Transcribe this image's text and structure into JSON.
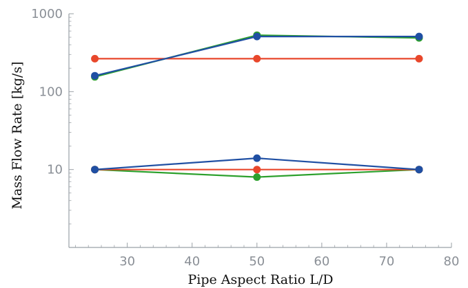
{
  "chart_data": {
    "type": "line",
    "title": "",
    "xlabel": "Pipe Aspect Ratio L/D",
    "ylabel": "Mass Flow Rate [kg/s]",
    "xlim": [
      21,
      80
    ],
    "ylim": [
      1,
      1000
    ],
    "y_scale": "log",
    "grid": false,
    "x_ticks": [
      30,
      40,
      50,
      60,
      70,
      80
    ],
    "y_tick_labels": [
      {
        "value": 10,
        "label": "10"
      },
      {
        "value": 100,
        "label": "100"
      },
      {
        "value": 1000,
        "label": "1000"
      }
    ],
    "series": [
      {
        "color": "#2ca02c",
        "x": [
          25,
          50,
          75
        ],
        "y": [
          155,
          530,
          490
        ]
      },
      {
        "color": "#e8472b",
        "x": [
          25,
          50,
          75
        ],
        "y": [
          265,
          265,
          265
        ]
      },
      {
        "color": "#1f4fa3",
        "x": [
          25,
          50,
          75
        ],
        "y": [
          160,
          510,
          510
        ]
      },
      {
        "color": "#2ca02c",
        "x": [
          25,
          50,
          75
        ],
        "y": [
          10,
          8,
          10
        ]
      },
      {
        "color": "#e8472b",
        "x": [
          25,
          50,
          75
        ],
        "y": [
          10,
          10,
          10
        ]
      },
      {
        "color": "#1f4fa3",
        "x": [
          25,
          50,
          75
        ],
        "y": [
          10,
          14,
          10
        ]
      }
    ]
  }
}
